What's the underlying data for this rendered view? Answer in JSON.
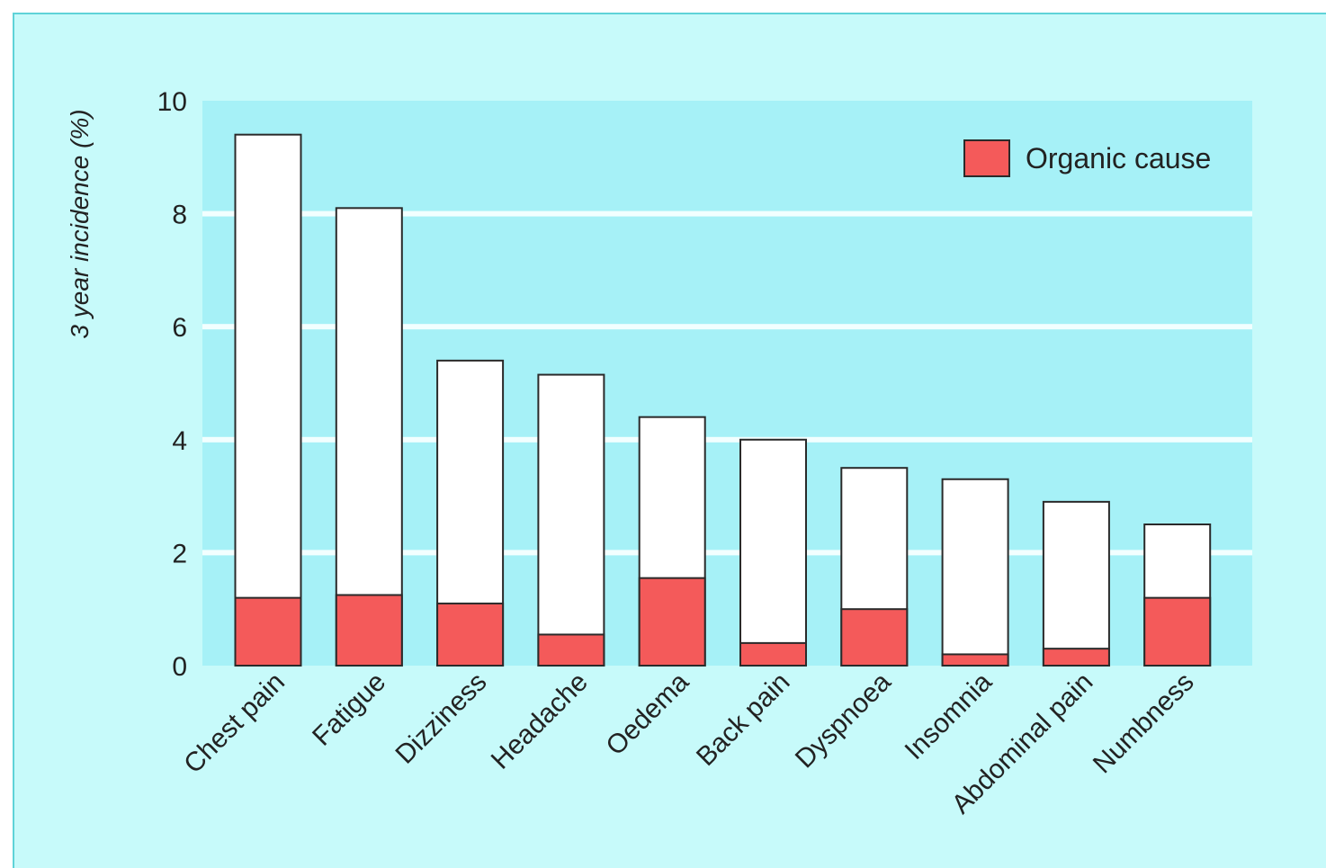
{
  "chart_data": {
    "type": "bar",
    "stacked": true,
    "categories": [
      "Chest pain",
      "Fatigue",
      "Dizziness",
      "Headache",
      "Oedema",
      "Back pain",
      "Dyspnoea",
      "Insomnia",
      "Abdominal pain",
      "Numbness"
    ],
    "total_values": [
      9.4,
      8.1,
      5.4,
      5.15,
      4.4,
      4.0,
      3.5,
      3.3,
      2.9,
      2.5
    ],
    "organic_values": [
      1.2,
      1.25,
      1.1,
      0.55,
      1.55,
      0.4,
      1.0,
      0.2,
      0.3,
      1.2
    ],
    "series": [
      {
        "name": "Organic cause",
        "values": [
          1.2,
          1.25,
          1.1,
          0.55,
          1.55,
          0.4,
          1.0,
          0.2,
          0.3,
          1.2
        ]
      }
    ],
    "ylabel": "3 year incidence (%)",
    "xlabel": "",
    "title": "",
    "ylim": [
      0,
      10
    ],
    "yticks": [
      "0",
      "2",
      "4",
      "6",
      "8",
      "10"
    ],
    "grid": true,
    "legend": {
      "position": "top-right",
      "label": "Organic cause"
    },
    "colors": {
      "panel_background": "#c7fafa",
      "plot_background": "#a6f1f7",
      "gridline": "#f2ffff",
      "bar_total": "#ffffff",
      "bar_organic": "#f45a5a",
      "bar_outline": "#2a2a2a",
      "text": "#222222"
    }
  }
}
